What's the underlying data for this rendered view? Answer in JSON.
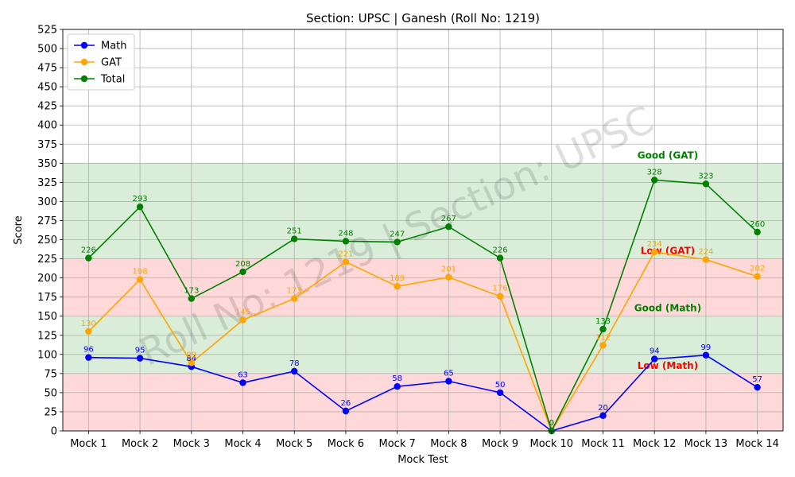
{
  "chart_data": {
    "type": "line",
    "title": "Section: UPSC | Ganesh  (Roll No: 1219)",
    "xlabel": "Mock Test",
    "ylabel": "Score",
    "ylim": [
      0,
      525
    ],
    "ytick_step": 25,
    "grid": true,
    "legend_position": "top-left",
    "categories": [
      "Mock 1",
      "Mock 2",
      "Mock 3",
      "Mock 4",
      "Mock 5",
      "Mock 6",
      "Mock 7",
      "Mock 8",
      "Mock 9",
      "Mock 10",
      "Mock 11",
      "Mock 12",
      "Mock 13",
      "Mock 14"
    ],
    "series": [
      {
        "name": "Math",
        "color": "#0000ff",
        "values": [
          96,
          95,
          84,
          63,
          78,
          26,
          58,
          65,
          50,
          0,
          20,
          94,
          99,
          57
        ]
      },
      {
        "name": "GAT",
        "color": "#ffa500",
        "values": [
          130,
          198,
          89,
          145,
          173,
          221,
          189,
          201,
          176,
          0,
          112,
          234,
          224,
          202
        ]
      },
      {
        "name": "Total",
        "color": "#008000",
        "values": [
          226,
          293,
          173,
          208,
          251,
          248,
          247,
          267,
          226,
          0,
          133,
          328,
          323,
          260
        ]
      }
    ],
    "bands": [
      {
        "from": 0,
        "to": 75,
        "color": "#ffb3b3",
        "label": "Low (Math)",
        "label_color": "#ff0000"
      },
      {
        "from": 75,
        "to": 150,
        "color": "#b3dbb3",
        "label": "Good (Math)",
        "label_color": "#008000"
      },
      {
        "from": 150,
        "to": 225,
        "color": "#ffb3b3",
        "label": "Low (GAT)",
        "label_color": "#ff0000"
      },
      {
        "from": 225,
        "to": 350,
        "color": "#b3dbb3",
        "label": "Good (GAT)",
        "label_color": "#008000"
      }
    ],
    "watermark": "Roll No: 1219 | Section: UPSC"
  }
}
